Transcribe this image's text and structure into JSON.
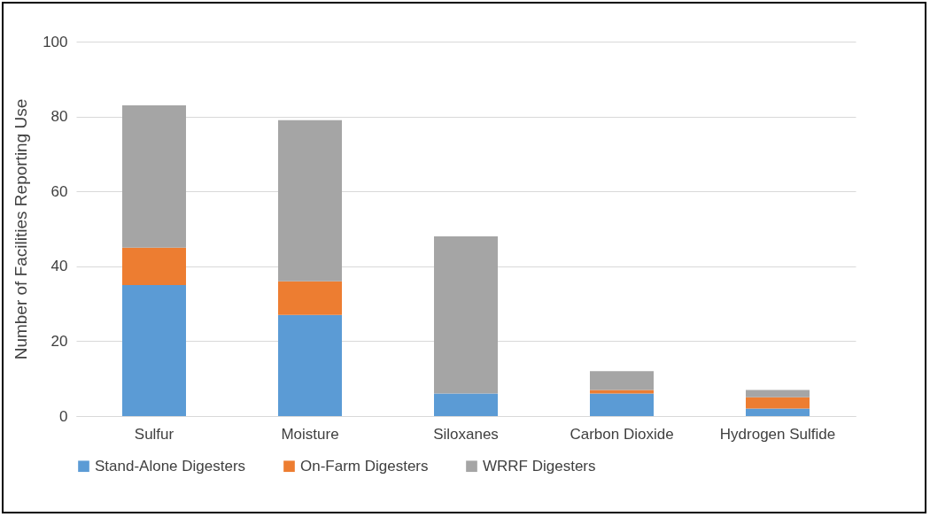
{
  "chart_data": {
    "type": "bar",
    "ylabel": "Number of  Facilities Reporting Use",
    "categories": [
      "Sulfur",
      "Moisture",
      "Siloxanes",
      "Carbon Dioxide",
      "Hydrogen Sulfide"
    ],
    "series": [
      {
        "name": "Stand-Alone Digesters",
        "color": "#5b9bd5",
        "values": [
          35,
          27,
          6,
          6,
          2
        ]
      },
      {
        "name": "On-Farm Digesters",
        "color": "#ed7d31",
        "values": [
          10,
          9,
          0,
          1,
          3
        ]
      },
      {
        "name": "WRRF Digesters",
        "color": "#a5a5a5",
        "values": [
          38,
          43,
          42,
          5,
          2
        ]
      }
    ],
    "stacked": true,
    "ylim": [
      0,
      100
    ],
    "yticks": [
      0,
      20,
      40,
      60,
      80,
      100
    ],
    "grid": "y",
    "legend": "bottom"
  }
}
